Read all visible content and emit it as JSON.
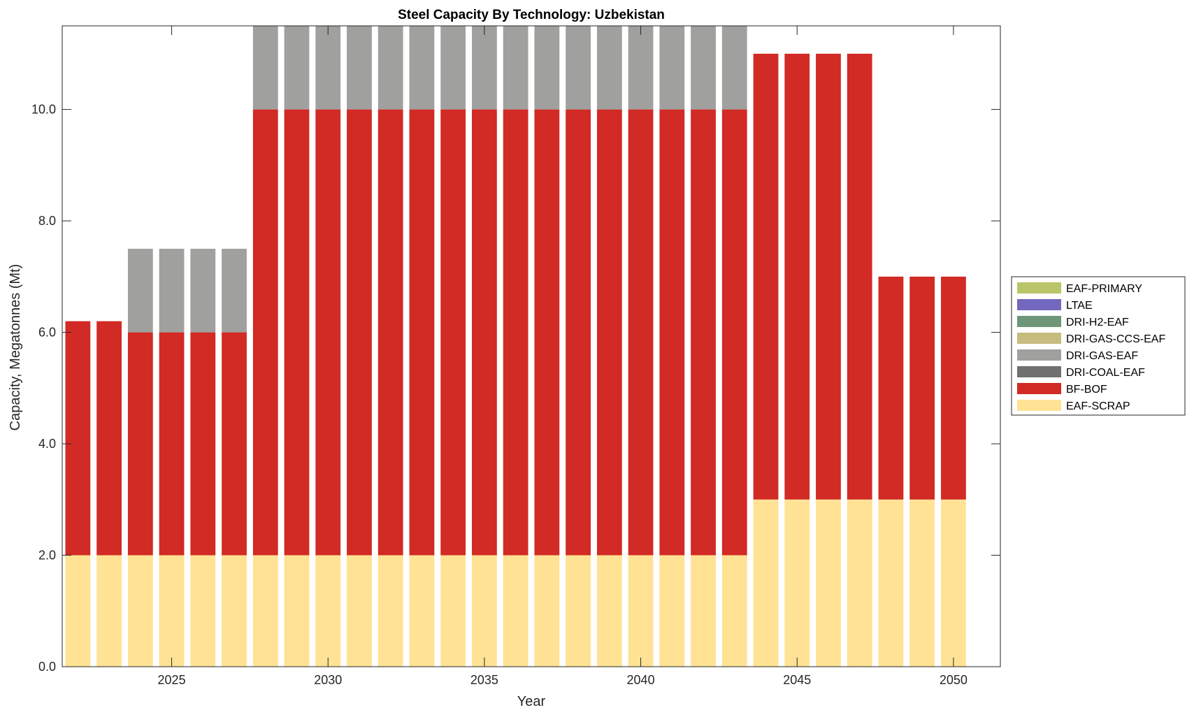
{
  "chart_data": {
    "type": "bar",
    "stacked": true,
    "title": "Steel Capacity By Technology: Uzbekistan",
    "xlabel": "Year",
    "ylabel": "Capacity, Megatonnes (Mt)",
    "xlim": [
      2021.5,
      2051.5
    ],
    "ylim": [
      0,
      11.5
    ],
    "xticks": [
      2025,
      2030,
      2035,
      2040,
      2045,
      2050
    ],
    "xtick_labels": [
      "2025",
      "2030",
      "2035",
      "2040",
      "2045",
      "2050"
    ],
    "yticks": [
      0,
      2,
      4,
      6,
      8,
      10
    ],
    "ytick_labels": [
      "0.0",
      "2.0",
      "4.0",
      "6.0",
      "8.0",
      "10.0"
    ],
    "grid": false,
    "legend_position": "right",
    "categories": [
      2022,
      2023,
      2024,
      2025,
      2026,
      2027,
      2028,
      2029,
      2030,
      2031,
      2032,
      2033,
      2034,
      2035,
      2036,
      2037,
      2038,
      2039,
      2040,
      2041,
      2042,
      2043,
      2044,
      2045,
      2046,
      2047,
      2048,
      2049,
      2050
    ],
    "series": [
      {
        "name": "EAF-SCRAP",
        "color": "#FFE294",
        "values": [
          2,
          2,
          2,
          2,
          2,
          2,
          2,
          2,
          2,
          2,
          2,
          2,
          2,
          2,
          2,
          2,
          2,
          2,
          2,
          2,
          2,
          2,
          3,
          3,
          3,
          3,
          3,
          3,
          3
        ]
      },
      {
        "name": "BF-BOF",
        "color": "#D22A24",
        "values": [
          4.2,
          4.2,
          4,
          4,
          4,
          4,
          8,
          8,
          8,
          8,
          8,
          8,
          8,
          8,
          8,
          8,
          8,
          8,
          8,
          8,
          8,
          8,
          8,
          8,
          8,
          8,
          4,
          4,
          4
        ]
      },
      {
        "name": "DRI-COAL-EAF",
        "color": "#707070",
        "values": [
          0,
          0,
          0,
          0,
          0,
          0,
          0,
          0,
          0,
          0,
          0,
          0,
          0,
          0,
          0,
          0,
          0,
          0,
          0,
          0,
          0,
          0,
          0,
          0,
          0,
          0,
          0,
          0,
          0
        ]
      },
      {
        "name": "DRI-GAS-EAF",
        "color": "#A0A09E",
        "values": [
          0,
          0,
          1.5,
          1.5,
          1.5,
          1.5,
          1.5,
          1.5,
          1.5,
          1.5,
          1.5,
          1.5,
          1.5,
          1.5,
          1.5,
          1.5,
          1.5,
          1.5,
          1.5,
          1.5,
          1.5,
          1.5,
          0,
          0,
          0,
          0,
          0,
          0,
          0
        ]
      },
      {
        "name": "DRI-GAS-CCS-EAF",
        "color": "#C6BC7E",
        "values": [
          0,
          0,
          0,
          0,
          0,
          0,
          0,
          0,
          0,
          0,
          0,
          0,
          0,
          0,
          0,
          0,
          0,
          0,
          0,
          0,
          0,
          0,
          0,
          0,
          0,
          0,
          0,
          0,
          0
        ]
      },
      {
        "name": "DRI-H2-EAF",
        "color": "#6E9678",
        "values": [
          0,
          0,
          0,
          0,
          0,
          0,
          0,
          0,
          0,
          0,
          0,
          0,
          0,
          0,
          0,
          0,
          0,
          0,
          0,
          0,
          0,
          0,
          0,
          0,
          0,
          0,
          0,
          0,
          0
        ]
      },
      {
        "name": "LTAE",
        "color": "#7268BE",
        "values": [
          0,
          0,
          0,
          0,
          0,
          0,
          0,
          0,
          0,
          0,
          0,
          0,
          0,
          0,
          0,
          0,
          0,
          0,
          0,
          0,
          0,
          0,
          0,
          0,
          0,
          0,
          0,
          0,
          0
        ]
      },
      {
        "name": "EAF-PRIMARY",
        "color": "#BAC468",
        "values": [
          0,
          0,
          0,
          0,
          0,
          0,
          0,
          0,
          0,
          0,
          0,
          0,
          0,
          0,
          0,
          0,
          0,
          0,
          0,
          0,
          0,
          0,
          0,
          0,
          0,
          0,
          0,
          0,
          0
        ]
      }
    ],
    "legend_order": [
      "EAF-PRIMARY",
      "LTAE",
      "DRI-H2-EAF",
      "DRI-GAS-CCS-EAF",
      "DRI-GAS-EAF",
      "DRI-COAL-EAF",
      "BF-BOF",
      "EAF-SCRAP"
    ]
  }
}
